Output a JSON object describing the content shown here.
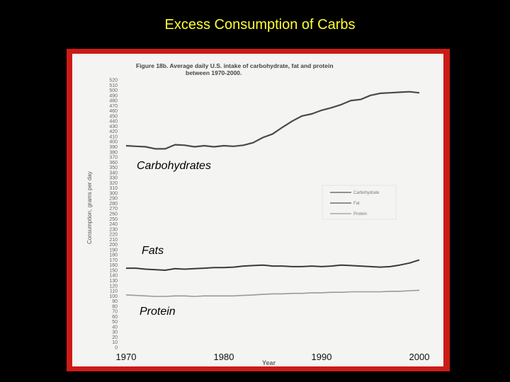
{
  "slide": {
    "title": "Excess Consumption of Carbs"
  },
  "colors": {
    "background": "#000000",
    "title": "#ffff33",
    "frame": "#cc1b17",
    "paper": "#f4f4f2"
  },
  "chart_data": {
    "type": "line",
    "caption_line1": "Figure 18b. Average daily U.S. intake of carbohydrate, fat and protein",
    "caption_line2": "between 1970-2000.",
    "ylabel": "Consumption, grams per day",
    "xlabel": "Year",
    "ylim": [
      0,
      520
    ],
    "xlim": [
      1970,
      2000
    ],
    "yticks": [
      520,
      510,
      500,
      490,
      480,
      470,
      460,
      450,
      440,
      430,
      420,
      410,
      400,
      390,
      380,
      370,
      360,
      350,
      340,
      330,
      320,
      310,
      300,
      290,
      280,
      270,
      260,
      250,
      240,
      230,
      220,
      210,
      200,
      190,
      180,
      170,
      160,
      150,
      140,
      130,
      120,
      110,
      100,
      90,
      80,
      70,
      60,
      50,
      40,
      30,
      20,
      10,
      0
    ],
    "x_ticks": [
      {
        "label": "1970",
        "value": 1970
      },
      {
        "label": "1980",
        "value": 1980
      },
      {
        "label": "1990",
        "value": 1990
      },
      {
        "label": "2000",
        "value": 2000
      }
    ],
    "legend": [
      "Carbohydrate",
      "Fat",
      "Protein"
    ],
    "annotations": {
      "carbs": "Carbohydrates",
      "fats": "Fats",
      "protein": "Protein"
    },
    "series": [
      {
        "name": "Carbohydrate",
        "x": [
          1970,
          1971,
          1972,
          1973,
          1974,
          1975,
          1976,
          1977,
          1978,
          1979,
          1980,
          1981,
          1982,
          1983,
          1984,
          1985,
          1986,
          1987,
          1988,
          1989,
          1990,
          1991,
          1992,
          1993,
          1994,
          1995,
          1996,
          1997,
          1998,
          1999,
          2000
        ],
        "values": [
          392,
          391,
          390,
          386,
          386,
          394,
          393,
          390,
          392,
          390,
          392,
          391,
          393,
          398,
          408,
          415,
          428,
          440,
          450,
          454,
          461,
          466,
          472,
          480,
          482,
          490,
          494,
          495,
          496,
          497,
          495
        ]
      },
      {
        "name": "Fat",
        "x": [
          1970,
          1971,
          1972,
          1973,
          1974,
          1975,
          1976,
          1977,
          1978,
          1979,
          1980,
          1981,
          1982,
          1983,
          1984,
          1985,
          1986,
          1987,
          1988,
          1989,
          1990,
          1991,
          1992,
          1993,
          1994,
          1995,
          1996,
          1997,
          1998,
          1999,
          2000
        ],
        "values": [
          154,
          154,
          152,
          151,
          150,
          153,
          152,
          153,
          154,
          155,
          155,
          156,
          158,
          159,
          160,
          158,
          158,
          157,
          157,
          158,
          157,
          158,
          160,
          159,
          158,
          157,
          156,
          157,
          160,
          164,
          170
        ]
      },
      {
        "name": "Protein",
        "x": [
          1970,
          1971,
          1972,
          1973,
          1974,
          1975,
          1976,
          1977,
          1978,
          1979,
          1980,
          1981,
          1982,
          1983,
          1984,
          1985,
          1986,
          1987,
          1988,
          1989,
          1990,
          1991,
          1992,
          1993,
          1994,
          1995,
          1996,
          1997,
          1998,
          1999,
          2000
        ],
        "values": [
          102,
          101,
          100,
          99,
          99,
          100,
          100,
          99,
          100,
          100,
          100,
          100,
          101,
          102,
          103,
          104,
          104,
          105,
          105,
          106,
          106,
          107,
          107,
          108,
          108,
          108,
          108,
          109,
          109,
          110,
          111
        ]
      }
    ]
  }
}
